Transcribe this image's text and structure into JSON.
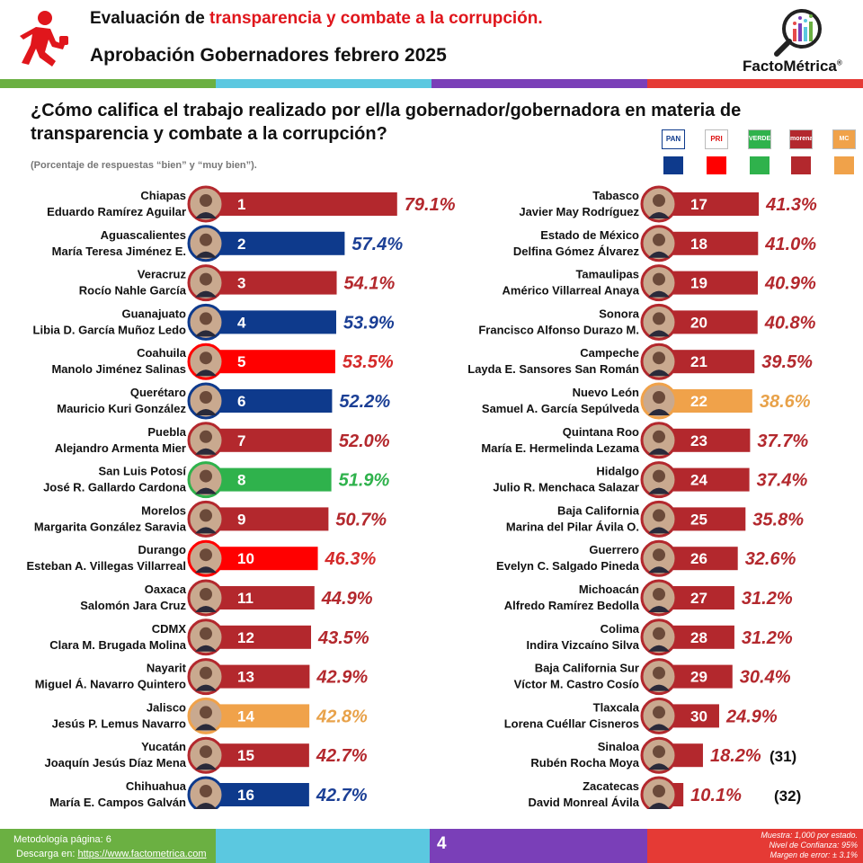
{
  "header": {
    "title_prefix": "Evaluación de ",
    "title_highlight": "transparencia y combate a la corrupción.",
    "subtitle": "Aprobación Gobernadores febrero 2025",
    "brand": "FactoMétrica",
    "brand_mark": "®"
  },
  "question": "¿Cómo califica el trabajo realizado por el/la gobernador/gobernadora en materia de transparencia y combate a la corrupción?",
  "note": "(Porcentaje de respuestas “bien” y “muy bien”).",
  "legend": [
    {
      "party": "PAN",
      "color": "#0e3a8c"
    },
    {
      "party": "PRI",
      "color": "#ff0000"
    },
    {
      "party": "VERDE",
      "color": "#2fb24c"
    },
    {
      "party": "morena",
      "color": "#b3282d"
    },
    {
      "party": "MC",
      "color": "#f0a24a"
    }
  ],
  "chart_data": {
    "type": "bar",
    "unit": "%",
    "xlim": [
      0,
      100
    ],
    "items": [
      {
        "rank": "1",
        "state": "Chiapas",
        "governor": "Eduardo Ramírez Aguilar",
        "value": 79.1,
        "label": "79.1%",
        "party": "morena"
      },
      {
        "rank": "2",
        "state": "Aguascalientes",
        "governor": "María Teresa Jiménez E.",
        "value": 57.4,
        "label": "57.4%",
        "party": "PAN"
      },
      {
        "rank": "3",
        "state": "Veracruz",
        "governor": "Rocío Nahle García",
        "value": 54.1,
        "label": "54.1%",
        "party": "morena"
      },
      {
        "rank": "4",
        "state": "Guanajuato",
        "governor": "Libia D. García Muñoz Ledo",
        "value": 53.9,
        "label": "53.9%",
        "party": "PAN"
      },
      {
        "rank": "5",
        "state": "Coahuila",
        "governor": "Manolo Jiménez Salinas",
        "value": 53.5,
        "label": "53.5%",
        "party": "PRI"
      },
      {
        "rank": "6",
        "state": "Querétaro",
        "governor": "Mauricio Kuri González",
        "value": 52.2,
        "label": "52.2%",
        "party": "PAN"
      },
      {
        "rank": "7",
        "state": "Puebla",
        "governor": "Alejandro Armenta Mier",
        "value": 52.0,
        "label": "52.0%",
        "party": "morena"
      },
      {
        "rank": "8",
        "state": "San Luis Potosí",
        "governor": "José R. Gallardo Cardona",
        "value": 51.9,
        "label": "51.9%",
        "party": "VERDE"
      },
      {
        "rank": "9",
        "state": "Morelos",
        "governor": "Margarita González Saravia",
        "value": 50.7,
        "label": "50.7%",
        "party": "morena"
      },
      {
        "rank": "10",
        "state": "Durango",
        "governor": "Esteban A. Villegas Villarreal",
        "value": 46.3,
        "label": "46.3%",
        "party": "PRI"
      },
      {
        "rank": "11",
        "state": "Oaxaca",
        "governor": "Salomón Jara Cruz",
        "value": 44.9,
        "label": "44.9%",
        "party": "morena"
      },
      {
        "rank": "12",
        "state": "CDMX",
        "governor": "Clara M. Brugada Molina",
        "value": 43.5,
        "label": "43.5%",
        "party": "morena"
      },
      {
        "rank": "13",
        "state": "Nayarit",
        "governor": "Miguel Á. Navarro Quintero",
        "value": 42.9,
        "label": "42.9%",
        "party": "morena"
      },
      {
        "rank": "14",
        "state": "Jalisco",
        "governor": "Jesús P. Lemus Navarro",
        "value": 42.8,
        "label": "42.8%",
        "party": "MC"
      },
      {
        "rank": "15",
        "state": "Yucatán",
        "governor": "Joaquín Jesús Díaz Mena",
        "value": 42.7,
        "label": "42.7%",
        "party": "morena"
      },
      {
        "rank": "16",
        "state": "Chihuahua",
        "governor": "María E. Campos Galván",
        "value": 42.7,
        "label": "42.7%",
        "party": "PAN"
      },
      {
        "rank": "17",
        "state": "Tabasco",
        "governor": "Javier May Rodríguez",
        "value": 41.3,
        "label": "41.3%",
        "party": "morena"
      },
      {
        "rank": "18",
        "state": "Estado de México",
        "governor": "Delfina Gómez Álvarez",
        "value": 41.0,
        "label": "41.0%",
        "party": "morena"
      },
      {
        "rank": "19",
        "state": "Tamaulipas",
        "governor": "Américo Villarreal Anaya",
        "value": 40.9,
        "label": "40.9%",
        "party": "morena"
      },
      {
        "rank": "20",
        "state": "Sonora",
        "governor": "Francisco Alfonso Durazo M.",
        "value": 40.8,
        "label": "40.8%",
        "party": "morena"
      },
      {
        "rank": "21",
        "state": "Campeche",
        "governor": "Layda E. Sansores San Román",
        "value": 39.5,
        "label": "39.5%",
        "party": "morena"
      },
      {
        "rank": "22",
        "state": "Nuevo León",
        "governor": "Samuel A. García Sepúlveda",
        "value": 38.6,
        "label": "38.6%",
        "party": "MC"
      },
      {
        "rank": "23",
        "state": "Quintana Roo",
        "governor": "María E. Hermelinda Lezama",
        "value": 37.7,
        "label": "37.7%",
        "party": "morena"
      },
      {
        "rank": "24",
        "state": "Hidalgo",
        "governor": "Julio R. Menchaca Salazar",
        "value": 37.4,
        "label": "37.4%",
        "party": "morena"
      },
      {
        "rank": "25",
        "state": "Baja California",
        "governor": "Marina del Pilar Ávila O.",
        "value": 35.8,
        "label": "35.8%",
        "party": "morena"
      },
      {
        "rank": "26",
        "state": "Guerrero",
        "governor": "Evelyn C. Salgado Pineda",
        "value": 32.6,
        "label": "32.6%",
        "party": "morena"
      },
      {
        "rank": "27",
        "state": "Michoacán",
        "governor": "Alfredo Ramírez Bedolla",
        "value": 31.2,
        "label": "31.2%",
        "party": "morena"
      },
      {
        "rank": "28",
        "state": "Colima",
        "governor": "Indira Vizcaíno Silva",
        "value": 31.2,
        "label": "31.2%",
        "party": "morena"
      },
      {
        "rank": "29",
        "state": "Baja California Sur",
        "governor": "Víctor M. Castro Cosío",
        "value": 30.4,
        "label": "30.4%",
        "party": "morena"
      },
      {
        "rank": "30",
        "state": "Tlaxcala",
        "governor": "Lorena Cuéllar Cisneros",
        "value": 24.9,
        "label": "24.9%",
        "party": "morena"
      },
      {
        "rank": "(31)",
        "state": "Sinaloa",
        "governor": "Rubén Rocha Moya",
        "value": 18.2,
        "label": "18.2%",
        "party": "morena"
      },
      {
        "rank": "(32)",
        "state": "Zacatecas",
        "governor": "David Monreal Ávila",
        "value": 10.1,
        "label": "10.1%",
        "party": "morena"
      }
    ]
  },
  "footer": {
    "methodology": "Metodología página: 6",
    "download_label": "Descarga en: ",
    "download_link": "https://www.factometrica.com",
    "page": "4",
    "sample": "Muestra: 1,000 por estado.",
    "confidence": "Nivel de Confianza: 95%",
    "error": "Margen de error: ± 3.1%"
  },
  "colors": {
    "stripe_green": "#6bb042",
    "stripe_cyan": "#5bc8e0",
    "stripe_purple": "#7a3fb8",
    "stripe_red": "#e53a35",
    "title_red": "#e0161c"
  }
}
